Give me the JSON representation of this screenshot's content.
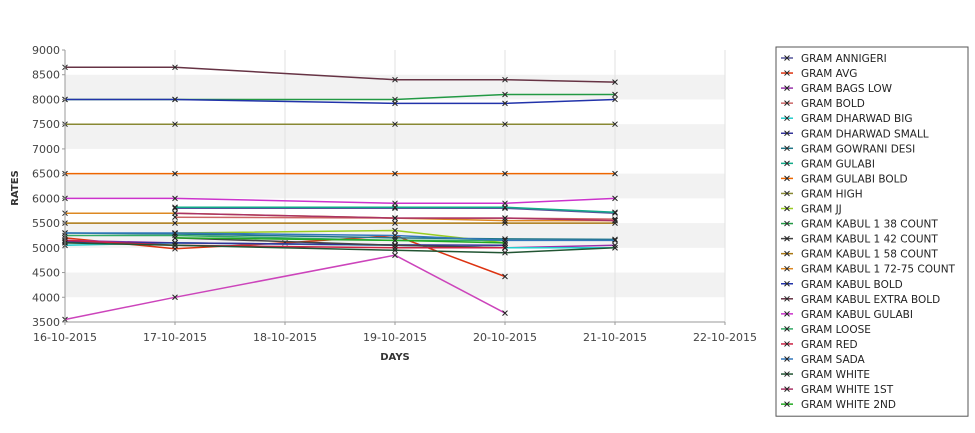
{
  "chart_data": {
    "type": "line",
    "xlabel": "DAYS",
    "ylabel": "RATES",
    "x_ticks": [
      "16-10-2015",
      "17-10-2015",
      "18-10-2015",
      "19-10-2015",
      "20-10-2015",
      "21-10-2015",
      "22-10-2015"
    ],
    "x_range": [
      "16-10-2015",
      "22-10-2015"
    ],
    "ylim": [
      3500,
      9000
    ],
    "y_ticks": [
      3500,
      4000,
      4500,
      5000,
      5500,
      6000,
      6500,
      7000,
      7500,
      8000,
      8500,
      9000
    ],
    "grid": "vertical lines and alternating horizontal bands",
    "legend_position": "right",
    "series": [
      {
        "name": "GRAM ANNIGERI",
        "color": "#55559a",
        "points": [
          [
            "17-10-2015",
            5800
          ],
          [
            "19-10-2015",
            5800
          ],
          [
            "20-10-2015",
            5800
          ],
          [
            "21-10-2015",
            5700
          ]
        ]
      },
      {
        "name": "GRAM AVG",
        "color": "#dd3311",
        "points": [
          [
            "16-10-2015",
            5200
          ],
          [
            "17-10-2015",
            4980
          ],
          [
            "18-10-2015",
            5100
          ],
          [
            "19-10-2015",
            5250
          ],
          [
            "20-10-2015",
            4420
          ]
        ]
      },
      {
        "name": "GRAM BAGS LOW",
        "color": "#9933aa",
        "points": [
          [
            "16-10-2015",
            5150
          ],
          [
            "17-10-2015",
            5100
          ],
          [
            "19-10-2015",
            5050
          ],
          [
            "20-10-2015",
            5000
          ],
          [
            "21-10-2015",
            5050
          ]
        ]
      },
      {
        "name": "GRAM BOLD",
        "color": "#cc6666",
        "points": [
          [
            "17-10-2015",
            5620
          ],
          [
            "19-10-2015",
            5600
          ],
          [
            "20-10-2015",
            5600
          ],
          [
            "21-10-2015",
            5580
          ]
        ]
      },
      {
        "name": "GRAM DHARWAD BIG",
        "color": "#22cccc",
        "points": [
          [
            "16-10-2015",
            5050
          ],
          [
            "17-10-2015",
            5100
          ],
          [
            "19-10-2015",
            5050
          ],
          [
            "20-10-2015",
            5000
          ],
          [
            "21-10-2015",
            5000
          ]
        ]
      },
      {
        "name": "GRAM DHARWAD SMALL",
        "color": "#333399",
        "points": [
          [
            "16-10-2015",
            5120
          ],
          [
            "17-10-2015",
            5100
          ],
          [
            "19-10-2015",
            5060
          ],
          [
            "20-10-2015",
            5050
          ]
        ]
      },
      {
        "name": "GRAM GOWRANI DESI",
        "color": "#227788",
        "points": [
          [
            "16-10-2015",
            5300
          ],
          [
            "17-10-2015",
            5280
          ],
          [
            "19-10-2015",
            5200
          ],
          [
            "20-10-2015",
            5180
          ],
          [
            "21-10-2015",
            5170
          ]
        ]
      },
      {
        "name": "GRAM GULABI",
        "color": "#11aa88",
        "points": [
          [
            "17-10-2015",
            5820
          ],
          [
            "19-10-2015",
            5820
          ],
          [
            "20-10-2015",
            5820
          ],
          [
            "21-10-2015",
            5720
          ]
        ]
      },
      {
        "name": "GRAM GULABI BOLD",
        "color": "#ee6600",
        "points": [
          [
            "16-10-2015",
            6500
          ],
          [
            "17-10-2015",
            6500
          ],
          [
            "19-10-2015",
            6500
          ],
          [
            "20-10-2015",
            6500
          ],
          [
            "21-10-2015",
            6500
          ]
        ]
      },
      {
        "name": "GRAM HIGH",
        "color": "#888833",
        "points": [
          [
            "16-10-2015",
            7500
          ],
          [
            "17-10-2015",
            7500
          ],
          [
            "19-10-2015",
            7500
          ],
          [
            "20-10-2015",
            7500
          ],
          [
            "21-10-2015",
            7500
          ]
        ]
      },
      {
        "name": "GRAM JJ",
        "color": "#99cc22",
        "points": [
          [
            "17-10-2015",
            5300
          ],
          [
            "19-10-2015",
            5350
          ],
          [
            "20-10-2015",
            5100
          ]
        ]
      },
      {
        "name": "GRAM KABUL 1 38 COUNT",
        "color": "#229944",
        "points": [
          [
            "16-10-2015",
            8000
          ],
          [
            "17-10-2015",
            8000
          ],
          [
            "19-10-2015",
            8000
          ],
          [
            "20-10-2015",
            8100
          ],
          [
            "21-10-2015",
            8100
          ]
        ]
      },
      {
        "name": "GRAM KABUL 1 42 COUNT",
        "color": "#444444",
        "points": [
          [
            "17-10-2015",
            5200
          ],
          [
            "19-10-2015",
            5050
          ],
          [
            "20-10-2015",
            5000
          ]
        ]
      },
      {
        "name": "GRAM KABUL 1 58 COUNT",
        "color": "#aa7711",
        "points": [
          [
            "16-10-2015",
            5500
          ],
          [
            "17-10-2015",
            5500
          ],
          [
            "19-10-2015",
            5500
          ],
          [
            "20-10-2015",
            5500
          ],
          [
            "21-10-2015",
            5500
          ]
        ]
      },
      {
        "name": "GRAM KABUL 1 72-75 COUNT",
        "color": "#dd8822",
        "points": [
          [
            "16-10-2015",
            5700
          ],
          [
            "17-10-2015",
            5700
          ],
          [
            "19-10-2015",
            5600
          ],
          [
            "20-10-2015",
            5550
          ],
          [
            "21-10-2015",
            5550
          ]
        ]
      },
      {
        "name": "GRAM KABUL BOLD",
        "color": "#2233aa",
        "points": [
          [
            "16-10-2015",
            8000
          ],
          [
            "17-10-2015",
            8000
          ],
          [
            "19-10-2015",
            7920
          ],
          [
            "20-10-2015",
            7920
          ],
          [
            "21-10-2015",
            8000
          ]
        ]
      },
      {
        "name": "GRAM KABUL EXTRA BOLD",
        "color": "#663344",
        "points": [
          [
            "16-10-2015",
            8650
          ],
          [
            "17-10-2015",
            8650
          ],
          [
            "19-10-2015",
            8400
          ],
          [
            "20-10-2015",
            8400
          ],
          [
            "21-10-2015",
            8350
          ]
        ]
      },
      {
        "name": "GRAM KABUL GULABI",
        "color": "#cc33cc",
        "points": [
          [
            "16-10-2015",
            6000
          ],
          [
            "17-10-2015",
            6000
          ],
          [
            "19-10-2015",
            5900
          ],
          [
            "20-10-2015",
            5900
          ],
          [
            "21-10-2015",
            6000
          ]
        ]
      },
      {
        "name": "GRAM LOOSE",
        "color": "#33aa66",
        "points": [
          [
            "16-10-2015",
            5250
          ],
          [
            "17-10-2015",
            5250
          ],
          [
            "19-10-2015",
            5150
          ],
          [
            "20-10-2015",
            5150
          ]
        ]
      },
      {
        "name": "GRAM RED",
        "color": "#cc2244",
        "points": [
          [
            "16-10-2015",
            5150
          ],
          [
            "17-10-2015",
            5050
          ],
          [
            "19-10-2015",
            5000
          ],
          [
            "20-10-2015",
            5000
          ]
        ]
      },
      {
        "name": "GRAM SADA",
        "color": "#3377bb",
        "points": [
          [
            "16-10-2015",
            5300
          ],
          [
            "17-10-2015",
            5300
          ],
          [
            "19-10-2015",
            5250
          ],
          [
            "20-10-2015",
            5150
          ],
          [
            "21-10-2015",
            5150
          ]
        ]
      },
      {
        "name": "GRAM WHITE",
        "color": "#225533",
        "points": [
          [
            "16-10-2015",
            5100
          ],
          [
            "17-10-2015",
            5050
          ],
          [
            "19-10-2015",
            4950
          ],
          [
            "20-10-2015",
            4900
          ],
          [
            "21-10-2015",
            5000
          ]
        ]
      },
      {
        "name": "GRAM WHITE 1ST",
        "color": "#aa3366",
        "points": [
          [
            "17-10-2015",
            5700
          ],
          [
            "19-10-2015",
            5600
          ],
          [
            "20-10-2015",
            5600
          ],
          [
            "21-10-2015",
            5550
          ]
        ]
      },
      {
        "name": "GRAM WHITE 2ND",
        "color": "#22aa22",
        "points": [
          [
            "17-10-2015",
            5200
          ],
          [
            "19-10-2015",
            5150
          ],
          [
            "20-10-2015",
            5100
          ]
        ]
      },
      {
        "name": "",
        "color": "#cc44bb",
        "points": [
          [
            "16-10-2015",
            3550
          ],
          [
            "17-10-2015",
            4000
          ],
          [
            "19-10-2015",
            4850
          ],
          [
            "20-10-2015",
            3680
          ]
        ]
      }
    ]
  }
}
